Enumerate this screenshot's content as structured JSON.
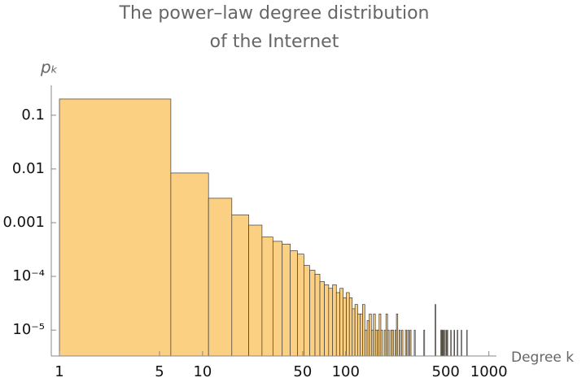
{
  "chart_data": {
    "type": "histogram",
    "title": [
      "The power–law degree distribution",
      "of the Internet"
    ],
    "x_label": "Degree k",
    "y_label": "pₖ",
    "log_x": true,
    "log_y": true,
    "color": "#fcd082",
    "edge_color": "#3a3a3a",
    "bins": [
      1,
      6,
      11,
      16,
      21,
      26,
      31,
      36,
      41,
      46,
      51,
      56,
      61,
      66,
      71,
      76,
      81,
      86,
      91,
      96,
      101,
      106,
      111,
      116,
      121,
      126,
      131,
      136,
      141,
      146,
      151,
      156,
      161,
      166,
      171,
      176,
      181,
      186,
      191,
      196,
      201,
      206,
      211,
      216,
      221,
      226,
      231,
      236,
      241,
      246,
      251,
      256,
      261,
      266,
      271,
      276,
      281,
      286,
      291,
      296,
      301,
      306,
      311,
      316,
      321,
      326,
      331,
      336,
      341,
      346,
      351,
      356,
      361,
      366,
      371,
      376,
      381,
      386,
      391,
      396,
      401,
      406,
      411,
      416,
      421,
      426,
      431,
      436,
      441,
      446,
      451,
      456,
      461,
      466,
      471,
      476,
      481,
      486,
      491,
      496,
      501,
      506,
      511,
      516,
      521,
      526,
      531,
      536,
      541,
      546,
      551,
      556,
      561,
      566,
      571,
      576,
      581,
      586,
      591,
      596,
      601,
      606,
      611,
      616,
      621,
      626,
      631,
      636,
      641,
      646,
      651,
      656,
      661,
      666,
      671,
      676,
      681,
      686,
      691,
      696,
      701,
      706,
      711,
      716,
      721,
      726,
      731,
      736,
      741,
      746,
      751,
      756,
      761
    ],
    "values": [
      0.2,
      0.0084,
      0.00285,
      0.0014,
      0.0009,
      0.00054,
      0.00045,
      0.0004,
      0.0003,
      0.00026,
      0.00016,
      0.00013,
      0.00011,
      8e-05,
      7e-05,
      6e-05,
      7e-05,
      5e-05,
      6e-05,
      4e-05,
      5e-05,
      4e-05,
      2.5e-05,
      3e-05,
      2e-05,
      2e-05,
      3e-05,
      1e-05,
      1.5e-05,
      2e-05,
      1e-05,
      2e-05,
      1e-05,
      1e-05,
      2e-05,
      1e-05,
      null,
      1e-05,
      2e-05,
      1e-05,
      null,
      1e-05,
      1e-05,
      null,
      1e-05,
      2e-05,
      null,
      1e-05,
      null,
      1e-05,
      null,
      null,
      1e-05,
      null,
      1e-05,
      null,
      1e-05,
      null,
      null,
      null,
      1e-05,
      null,
      null,
      null,
      null,
      null,
      null,
      null,
      null,
      null,
      1e-05,
      null,
      null,
      null,
      null,
      null,
      null,
      null,
      null,
      null,
      null,
      null,
      null,
      null,
      3e-05,
      null,
      null,
      null,
      null,
      null,
      null,
      null,
      1e-05,
      1e-05,
      null,
      1e-05,
      null,
      1e-05,
      null,
      null,
      1e-05,
      null,
      1e-05,
      null,
      null,
      null,
      null,
      null,
      1e-05,
      null,
      null,
      null,
      null,
      null,
      1e-05,
      null,
      null,
      null,
      null,
      null,
      1e-05,
      null,
      null,
      null,
      null,
      null,
      null,
      null,
      1e-05,
      null,
      null,
      null,
      null,
      null,
      null,
      null,
      null,
      null,
      null,
      null,
      1e-05,
      null,
      null,
      null,
      null,
      null,
      null,
      null,
      null,
      null,
      null,
      null
    ],
    "xlim": [
      0.877,
      1130
    ],
    "ylim": [
      3.3e-06,
      0.36
    ],
    "xticks": [
      1,
      5,
      10,
      50,
      100,
      500,
      1000
    ],
    "yticks": [
      0.1,
      0.01,
      0.001,
      {
        "value": 0.0001,
        "label": "10⁻⁴"
      },
      {
        "value": 1e-05,
        "label": "10⁻⁵"
      }
    ]
  }
}
